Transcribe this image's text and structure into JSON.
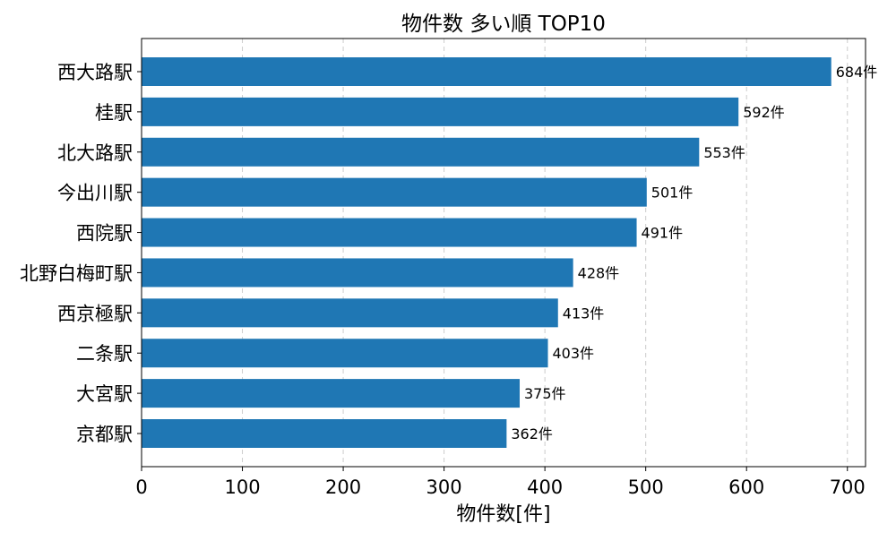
{
  "chart_data": {
    "type": "bar",
    "orientation": "horizontal",
    "title": "物件数 多い順 TOP10",
    "xlabel": "物件数[件]",
    "ylabel": "",
    "categories": [
      "西大路駅",
      "桂駅",
      "北大路駅",
      "今出川駅",
      "西院駅",
      "北野白梅町駅",
      "西京極駅",
      "二条駅",
      "大宮駅",
      "京都駅"
    ],
    "values": [
      684,
      592,
      553,
      501,
      491,
      428,
      413,
      403,
      375,
      362
    ],
    "value_labels": [
      "684件",
      "592件",
      "553件",
      "501件",
      "491件",
      "428件",
      "413件",
      "403件",
      "375件",
      "362件"
    ],
    "xlim": [
      0,
      718
    ],
    "x_ticks": [
      0,
      100,
      200,
      300,
      400,
      500,
      600,
      700
    ],
    "x_tick_labels": [
      "0",
      "100",
      "200",
      "300",
      "400",
      "500",
      "600",
      "700"
    ],
    "grid": "x-dashed",
    "bar_color": "#1f77b4",
    "grid_color": "#cccccc",
    "axis_color": "#000000"
  }
}
